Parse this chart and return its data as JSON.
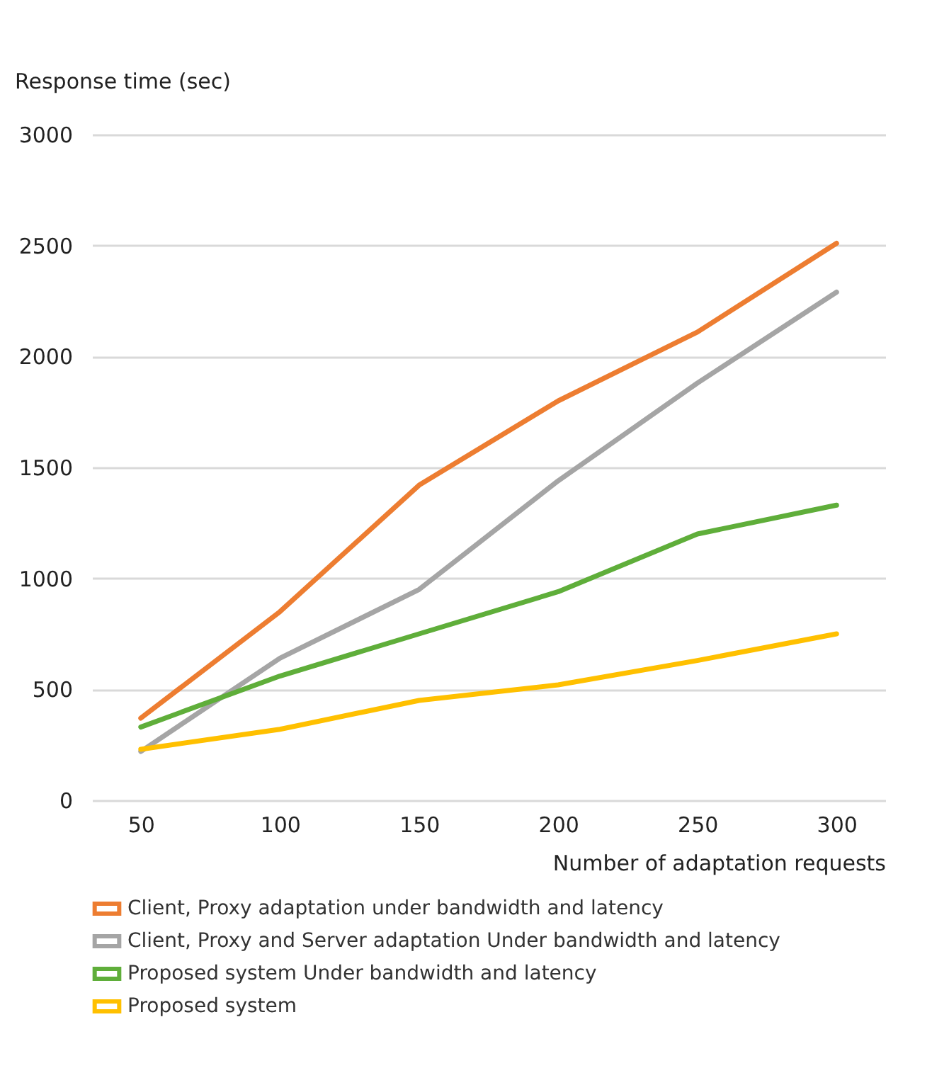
{
  "chart_data": {
    "type": "line",
    "xlabel": "Number of adaptation requests",
    "ylabel": "Response time (sec)",
    "categories": [
      "50",
      "100",
      "150",
      "200",
      "250",
      "300"
    ],
    "series": [
      {
        "name": "Client, Proxy adaptation under bandwidth and latency",
        "color": "#ed7d31",
        "values": [
          370,
          850,
          1420,
          1800,
          2110,
          2510
        ]
      },
      {
        "name": "Client, Proxy and Server adaptation Under bandwidth and latency",
        "color": "#a5a5a5",
        "values": [
          220,
          640,
          950,
          1440,
          1880,
          2290
        ]
      },
      {
        "name": "Proposed system Under bandwidth and latency",
        "color": "#5fae3a",
        "values": [
          330,
          560,
          750,
          940,
          1200,
          1330
        ]
      },
      {
        "name": "Proposed system",
        "color": "#ffc000",
        "values": [
          230,
          320,
          450,
          520,
          630,
          750
        ]
      }
    ],
    "ylim": [
      0,
      3000
    ],
    "yticks": [
      0,
      500,
      1000,
      1500,
      2000,
      2500,
      3000
    ],
    "grid": "y",
    "legend": "bottom",
    "marker": "none",
    "line_style": "solid"
  }
}
